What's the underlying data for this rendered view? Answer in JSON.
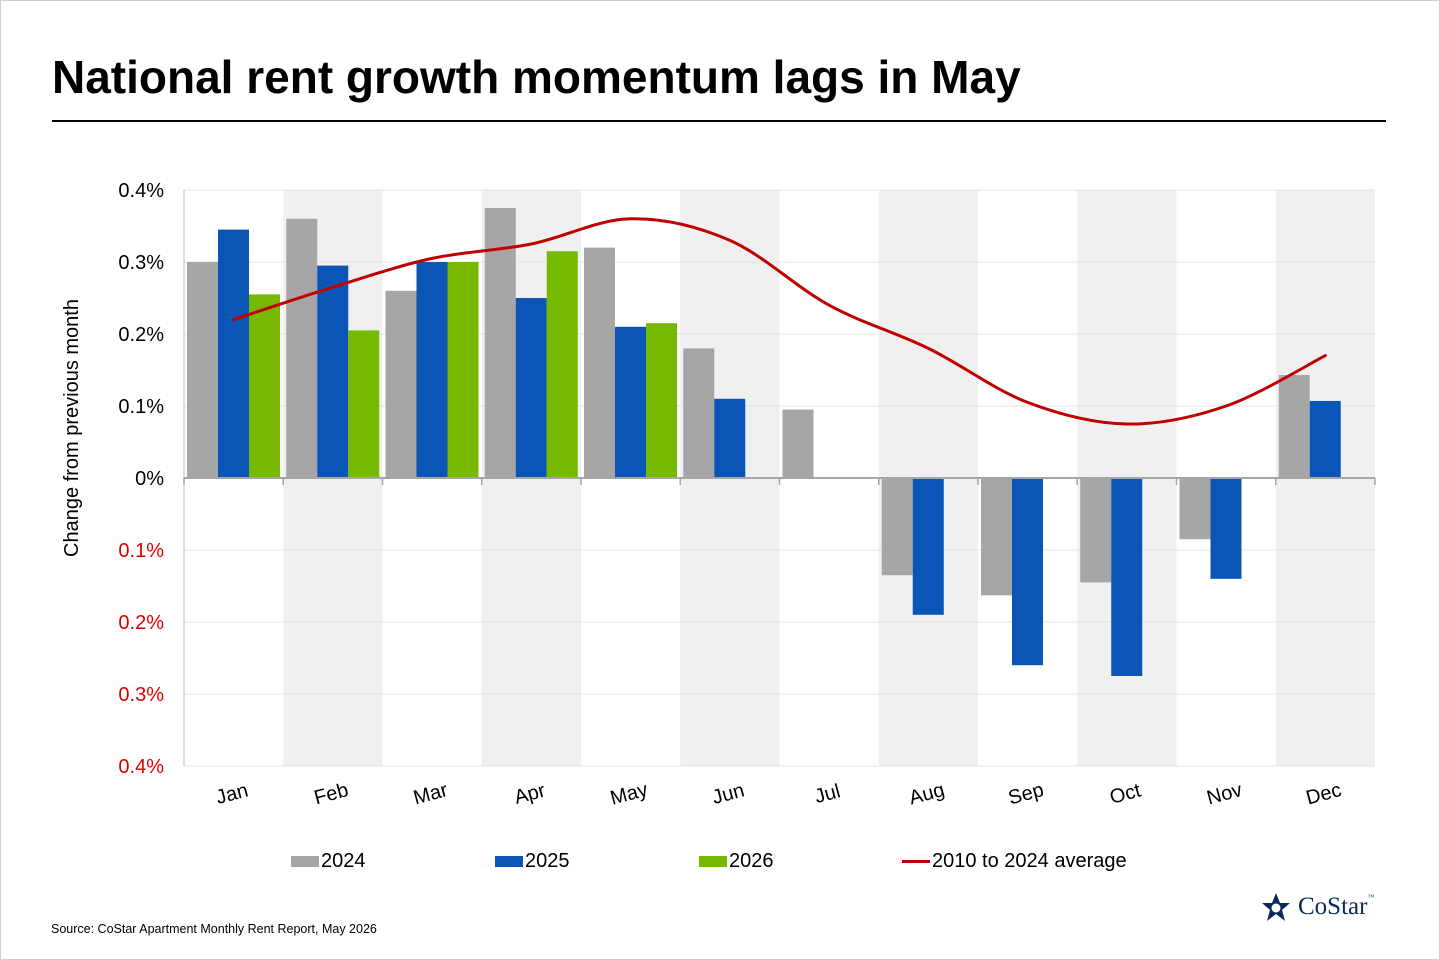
{
  "title": "National rent growth momentum lags in May",
  "source": "Source: CoStar Apartment Monthly Rent Report, May 2026",
  "logo": {
    "text": "CoStar",
    "tm": "™"
  },
  "legend": [
    {
      "label": "2024",
      "color": "#a6a6a6",
      "kind": "bar"
    },
    {
      "label": "2025",
      "color": "#0a55b5",
      "kind": "bar"
    },
    {
      "label": "2026",
      "color": "#77b900",
      "kind": "bar"
    },
    {
      "label": "2010 to 2024 average",
      "color": "#c00000",
      "kind": "line"
    }
  ],
  "chart_data": {
    "type": "bar",
    "ylabel": "Change from previous month",
    "ylim": [
      -0.4,
      0.4
    ],
    "yticks": [
      0.4,
      0.3,
      0.2,
      0.1,
      0,
      -0.1,
      -0.2,
      -0.3,
      -0.4
    ],
    "ytick_labels": [
      "0.4%",
      "0.3%",
      "0.2%",
      "0.1%",
      "0%",
      "0.1%",
      "0.2%",
      "0.3%",
      "0.4%"
    ],
    "negative_tick_color": "#e00000",
    "grid": true,
    "alternating_column_shading": true,
    "legend_position": "bottom",
    "categories": [
      "Jan",
      "Feb",
      "Mar",
      "Apr",
      "May",
      "Jun",
      "Jul",
      "Aug",
      "Sep",
      "Oct",
      "Nov",
      "Dec"
    ],
    "series": [
      {
        "name": "2024",
        "type": "bar",
        "color": "#a6a6a6",
        "values": [
          0.3,
          0.36,
          0.26,
          0.375,
          0.32,
          0.18,
          0.095,
          -0.135,
          -0.163,
          -0.145,
          -0.085,
          0.143
        ]
      },
      {
        "name": "2025",
        "type": "bar",
        "color": "#0a55b5",
        "values": [
          0.345,
          0.295,
          0.3,
          0.25,
          0.21,
          0.11,
          null,
          -0.19,
          -0.26,
          -0.275,
          -0.14,
          0.107
        ]
      },
      {
        "name": "2026",
        "type": "bar",
        "color": "#77b900",
        "values": [
          0.255,
          0.205,
          0.3,
          0.315,
          0.215,
          null,
          null,
          null,
          null,
          null,
          null,
          null
        ]
      },
      {
        "name": "2010 to 2024 average",
        "type": "line",
        "color": "#c00000",
        "values": [
          0.22,
          0.265,
          0.305,
          0.325,
          0.36,
          0.33,
          0.24,
          0.18,
          0.105,
          0.075,
          0.1,
          0.17
        ]
      }
    ]
  }
}
